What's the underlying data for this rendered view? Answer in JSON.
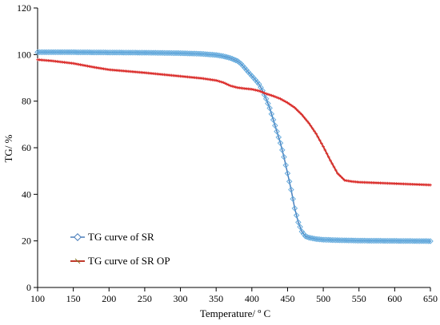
{
  "chart_data": {
    "type": "line",
    "title": "",
    "xlabel": "Temperature/ º C",
    "ylabel": "TG/ %",
    "xlim": [
      100,
      650
    ],
    "ylim": [
      0,
      120
    ],
    "xticks": [
      100,
      150,
      200,
      250,
      300,
      350,
      400,
      450,
      500,
      550,
      600,
      650
    ],
    "yticks": [
      0,
      20,
      40,
      60,
      80,
      100,
      120
    ],
    "grid": false,
    "legend_position": "bottom-left",
    "series": [
      {
        "name": "TG curve of SR",
        "color": "#4a7ebb",
        "marker_color": "#5fa8dc",
        "marker": "diamond",
        "x": [
          100,
          150,
          200,
          250,
          300,
          330,
          350,
          360,
          370,
          380,
          385,
          390,
          395,
          400,
          405,
          410,
          415,
          420,
          425,
          430,
          435,
          440,
          445,
          450,
          455,
          460,
          465,
          470,
          475,
          480,
          490,
          500,
          520,
          550,
          600,
          650
        ],
        "y": [
          101,
          101,
          100.9,
          100.8,
          100.6,
          100.3,
          99.8,
          99.3,
          98.5,
          97.2,
          96,
          94.3,
          92.5,
          90.8,
          89.1,
          87.3,
          84.5,
          81,
          77,
          72,
          67,
          62,
          56,
          49,
          42,
          34,
          28,
          24,
          22,
          21.4,
          20.8,
          20.5,
          20.3,
          20.1,
          20,
          19.9
        ]
      },
      {
        "name": "TG curve of SR OP",
        "color": "#c0392b",
        "marker_color": "#e03030",
        "marker": "plus",
        "x": [
          100,
          120,
          150,
          180,
          200,
          250,
          300,
          330,
          350,
          360,
          370,
          380,
          390,
          400,
          410,
          420,
          430,
          440,
          450,
          460,
          470,
          480,
          490,
          500,
          510,
          520,
          530,
          540,
          550,
          575,
          600,
          625,
          650
        ],
        "y": [
          97.8,
          97.3,
          96.2,
          94.5,
          93.5,
          92.2,
          90.7,
          89.8,
          88.9,
          88,
          86.6,
          85.8,
          85.4,
          85.1,
          84.4,
          83.2,
          82.2,
          81,
          79.3,
          77.2,
          74.2,
          70.5,
          66,
          60.5,
          54.5,
          49,
          46,
          45.5,
          45.2,
          44.9,
          44.6,
          44.3,
          44
        ]
      }
    ]
  }
}
